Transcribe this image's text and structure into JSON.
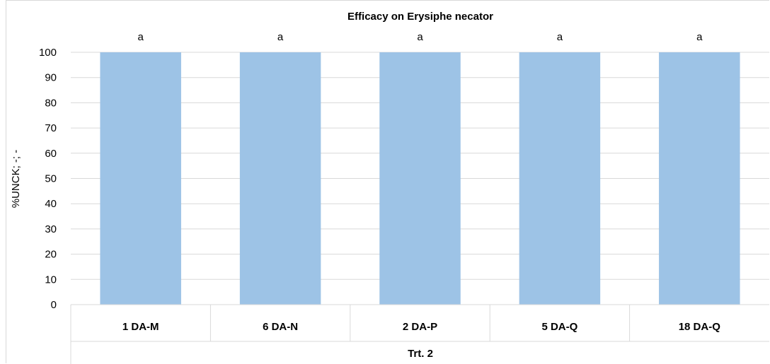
{
  "chart_data": {
    "type": "bar",
    "title": "Efficacy on Erysiphe necator",
    "xlabel": "Trt. 2",
    "ylabel": "%UNCK; -; -",
    "categories": [
      "1 DA-M",
      "6 DA-N",
      "2 DA-P",
      "5 DA-Q",
      "18 DA-Q"
    ],
    "values": [
      100,
      100,
      100,
      100,
      100
    ],
    "data_labels": [
      "a",
      "a",
      "a",
      "a",
      "a"
    ],
    "ylim": [
      0,
      100
    ],
    "yticks": [
      0,
      10,
      20,
      30,
      40,
      50,
      60,
      70,
      80,
      90,
      100
    ],
    "grid": true,
    "bar_color": "#9dc3e6",
    "grid_color": "#d9d9d9"
  }
}
